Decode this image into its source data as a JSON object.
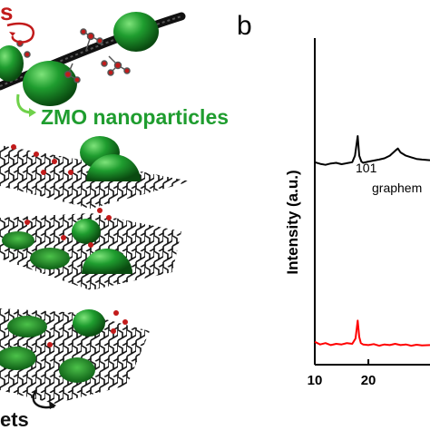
{
  "schematic": {
    "label_top_red": "s",
    "label_nanoparticles": "ZMO nanoparticles",
    "label_bottom": "ets",
    "colors": {
      "green": "#1f9d2f",
      "green_dark": "#0d5e15",
      "red_atom": "#c21b1b",
      "lattice": "#111111"
    }
  },
  "panel": {
    "letter": "b"
  },
  "chart_data": {
    "type": "line",
    "ylabel": "Intensity (a.u.)",
    "xlabel": "",
    "x_ticks": [
      "10",
      "20"
    ],
    "xlim": [
      10,
      31.5
    ],
    "annotations": [
      "101",
      "graphem"
    ],
    "series": [
      {
        "color": "#000000",
        "x": [
          10,
          11,
          12,
          13,
          14,
          15,
          16,
          17,
          17.5,
          18,
          18.3,
          18.7,
          19,
          20,
          21,
          22,
          23,
          24,
          25,
          25.5,
          26,
          27,
          28,
          29,
          30,
          31.5
        ],
        "y": [
          0.62,
          0.615,
          0.612,
          0.616,
          0.618,
          0.614,
          0.617,
          0.62,
          0.64,
          0.7,
          0.64,
          0.622,
          0.618,
          0.622,
          0.625,
          0.628,
          0.632,
          0.64,
          0.655,
          0.662,
          0.65,
          0.64,
          0.635,
          0.63,
          0.628,
          0.626
        ]
      },
      {
        "color": "#ff0000",
        "x": [
          10,
          11,
          12,
          13,
          14,
          15,
          16,
          17,
          17.6,
          18,
          18.3,
          18.6,
          19,
          20,
          21,
          22,
          23,
          24,
          25,
          26,
          27,
          28,
          29,
          30,
          31.5
        ],
        "y": [
          0.07,
          0.062,
          0.066,
          0.06,
          0.064,
          0.062,
          0.066,
          0.064,
          0.08,
          0.135,
          0.085,
          0.066,
          0.062,
          0.06,
          0.063,
          0.058,
          0.062,
          0.06,
          0.064,
          0.06,
          0.062,
          0.058,
          0.061,
          0.059,
          0.06
        ]
      }
    ]
  }
}
